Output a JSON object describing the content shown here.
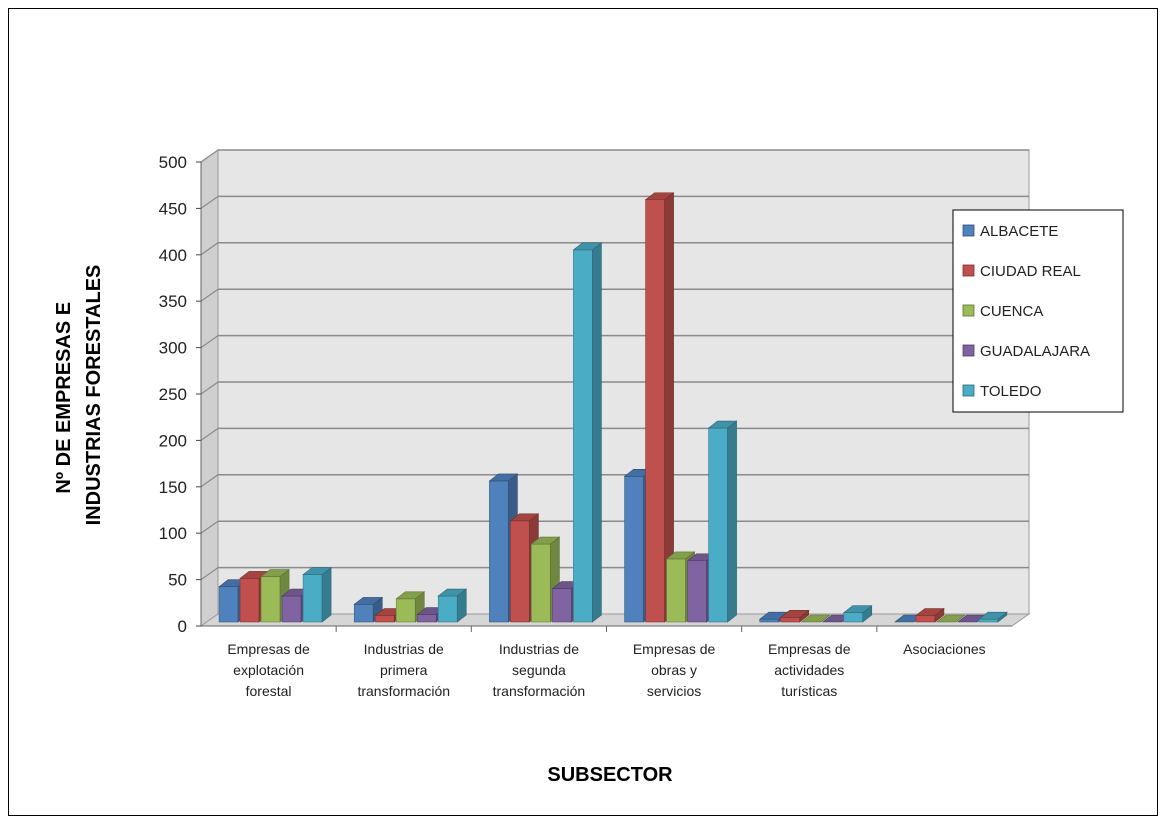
{
  "chart_data": {
    "type": "bar",
    "title": "",
    "xlabel": "SUBSECTOR",
    "ylabel_lines": [
      "Nº DE EMPRESAS E",
      "INDUSTRIAS FORESTALES"
    ],
    "ylim": [
      0,
      500
    ],
    "yticks": [
      0,
      50,
      100,
      150,
      200,
      250,
      300,
      350,
      400,
      450,
      500
    ],
    "categories": [
      [
        "Empresas de",
        "explotación",
        "forestal"
      ],
      [
        "Industrias de",
        "primera",
        "transformación"
      ],
      [
        "Industrias de",
        "segunda",
        "transformación"
      ],
      [
        "Empresas de",
        "obras y",
        "servicios"
      ],
      [
        "Empresas de",
        "actividades",
        "turísticas"
      ],
      [
        "Asociaciones"
      ]
    ],
    "series": [
      {
        "name": "ALBACETE",
        "color": "#4F81BD",
        "values": [
          38,
          19,
          152,
          157,
          3,
          0
        ]
      },
      {
        "name": "CIUDAD REAL",
        "color": "#C0504D",
        "values": [
          47,
          7,
          109,
          455,
          5,
          7
        ]
      },
      {
        "name": "CUENCA",
        "color": "#9BBB59",
        "values": [
          49,
          25,
          84,
          68,
          0,
          0
        ]
      },
      {
        "name": "GUADALAJARA",
        "color": "#8064A2",
        "values": [
          28,
          8,
          36,
          66,
          0,
          0
        ]
      },
      {
        "name": "TOLEDO",
        "color": "#4BACC6",
        "values": [
          51,
          28,
          401,
          209,
          10,
          3
        ]
      }
    ],
    "grid": true,
    "legend_position": "right",
    "style": "3d-clustered-column"
  }
}
